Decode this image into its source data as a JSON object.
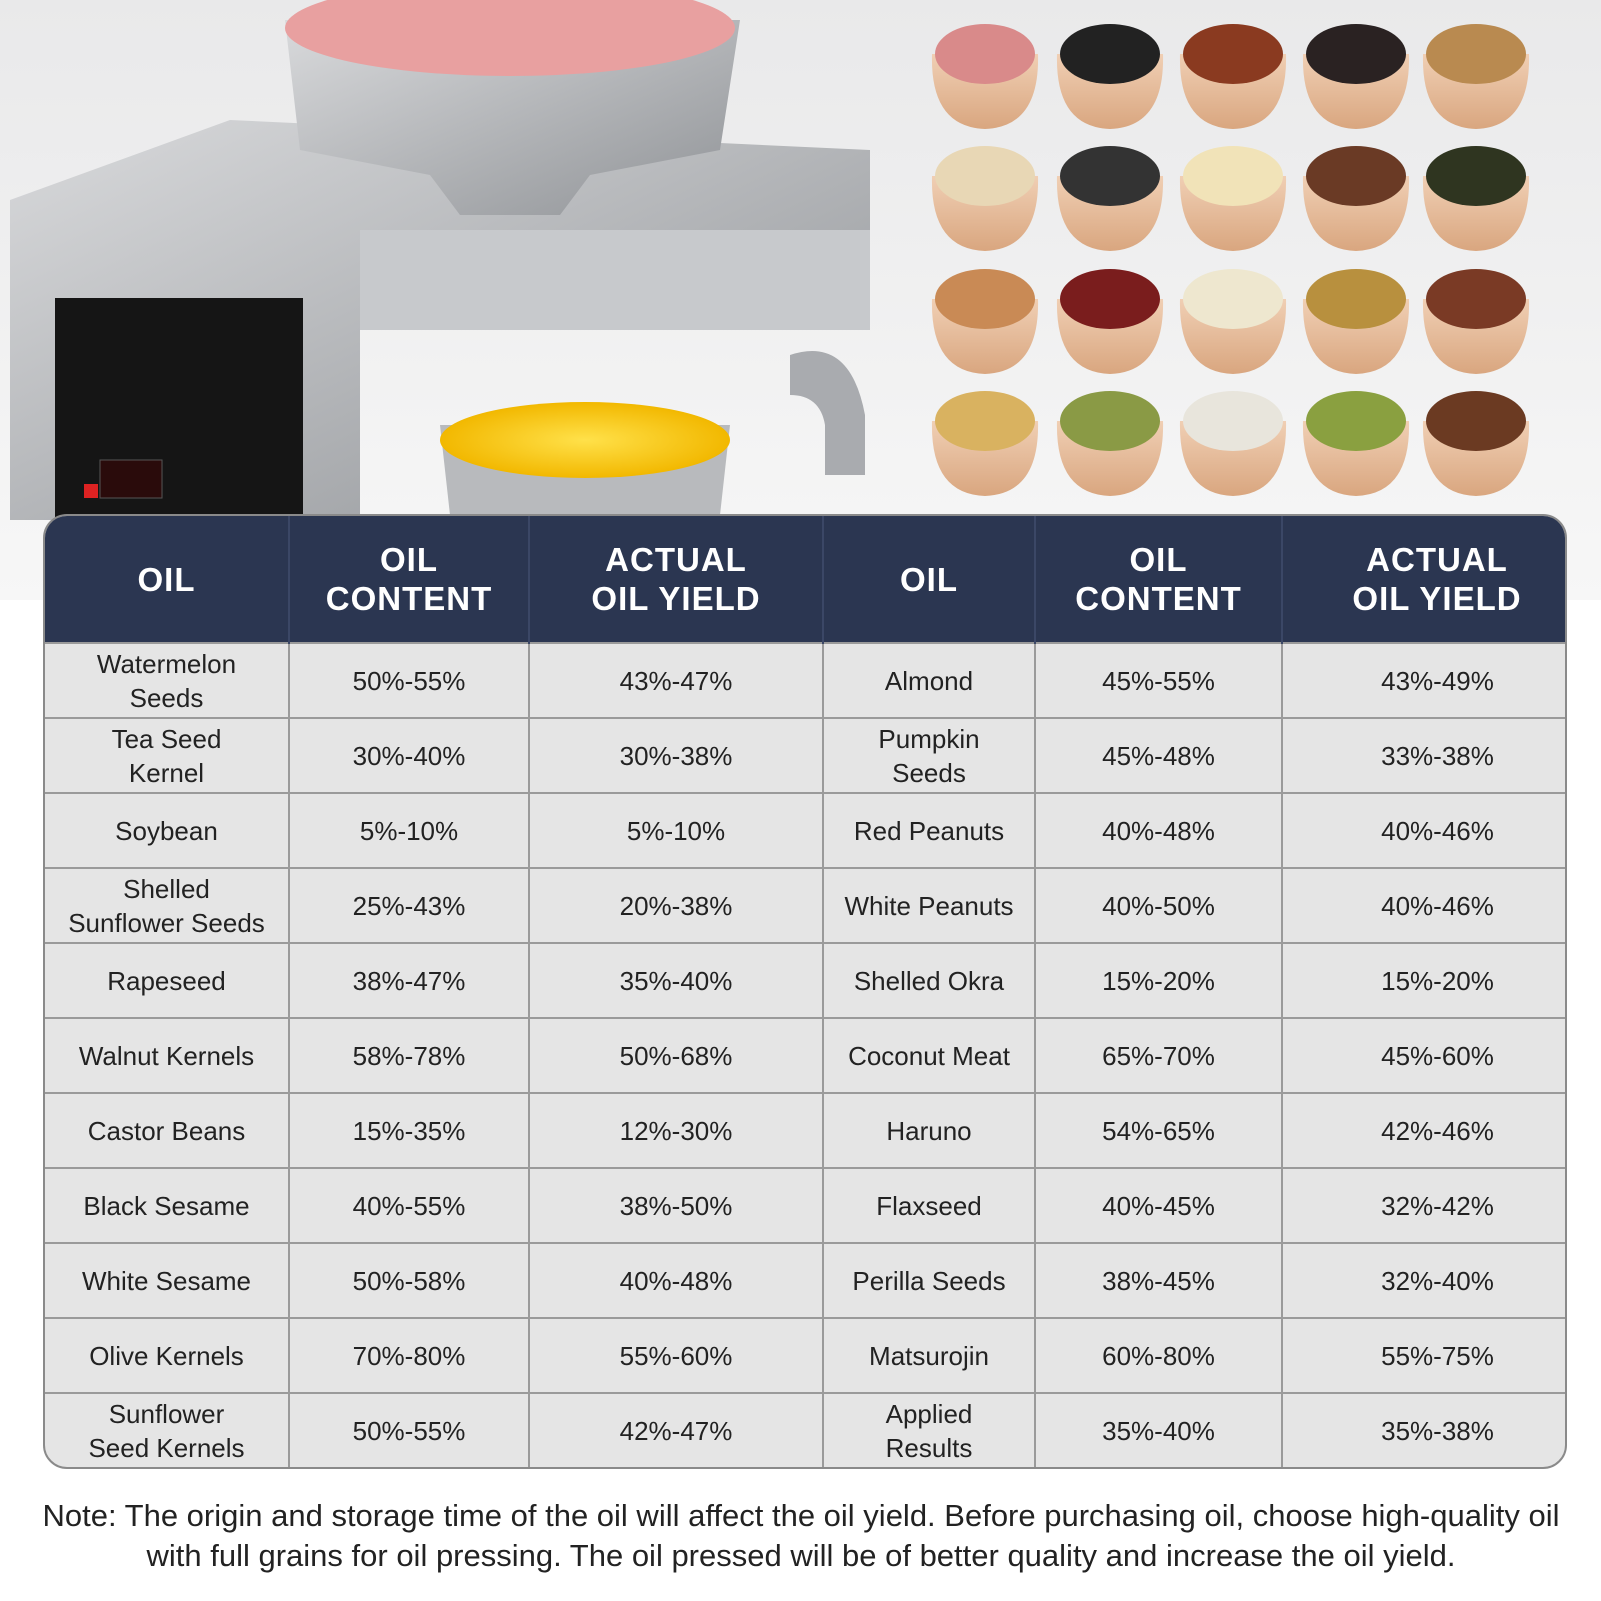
{
  "table": {
    "columns": [
      "OIL",
      "OIL\nCONTENT",
      "ACTUAL\nOIL YIELD",
      "OIL",
      "OIL\nCONTENT",
      "ACTUAL\nOIL YIELD"
    ],
    "rows": [
      [
        "Watermelon\nSeeds",
        "50%-55%",
        "43%-47%",
        "Almond",
        "45%-55%",
        "43%-49%"
      ],
      [
        "Tea Seed\nKernel",
        "30%-40%",
        "30%-38%",
        "Pumpkin\nSeeds",
        "45%-48%",
        "33%-38%"
      ],
      [
        "Soybean",
        "5%-10%",
        "5%-10%",
        "Red Peanuts",
        "40%-48%",
        "40%-46%"
      ],
      [
        "Shelled\nSunflower Seeds",
        "25%-43%",
        "20%-38%",
        "White Peanuts",
        "40%-50%",
        "40%-46%"
      ],
      [
        "Rapeseed",
        "38%-47%",
        "35%-40%",
        "Shelled Okra",
        "15%-20%",
        "15%-20%"
      ],
      [
        "Walnut Kernels",
        "58%-78%",
        "50%-68%",
        "Coconut Meat",
        "65%-70%",
        "45%-60%"
      ],
      [
        "Castor Beans",
        "15%-35%",
        "12%-30%",
        "Haruno",
        "54%-65%",
        "42%-46%"
      ],
      [
        "Black Sesame",
        "40%-55%",
        "38%-50%",
        "Flaxseed",
        "40%-45%",
        "32%-42%"
      ],
      [
        "White Sesame",
        "50%-58%",
        "40%-48%",
        "Perilla Seeds",
        "38%-45%",
        "32%-40%"
      ],
      [
        "Olive Kernels",
        "70%-80%",
        "55%-60%",
        "Matsurojin",
        "60%-80%",
        "55%-75%"
      ],
      [
        "Sunflower\nSeed Kernels",
        "50%-55%",
        "42%-47%",
        "Applied\nResults",
        "35%-40%",
        "35%-38%"
      ]
    ]
  },
  "note": "Note: The origin and storage time of the oil will affect the oil yield. Before purchasing oil, choose high-quality oil with full grains for oil pressing. The oil pressed will be of better quality and increase the oil yield."
}
